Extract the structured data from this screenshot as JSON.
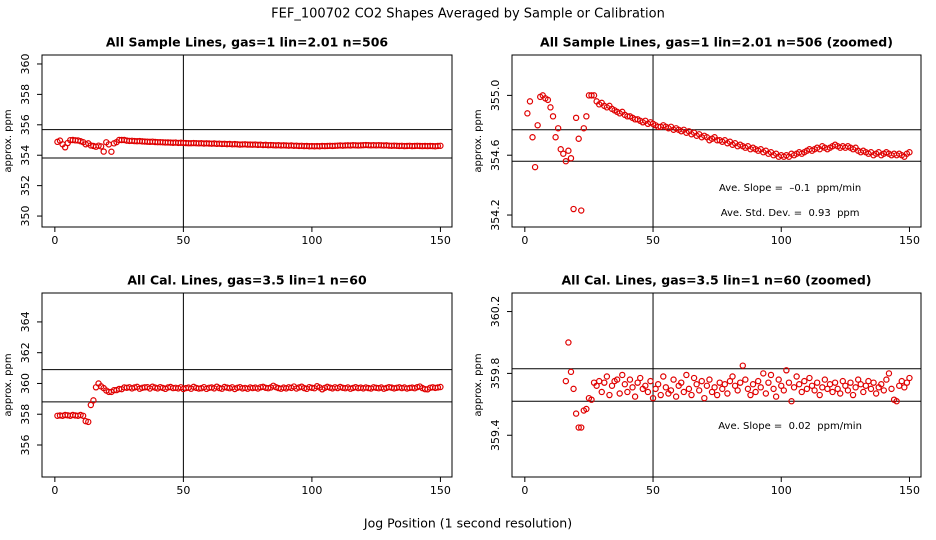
{
  "title": "FEF_100702  CO2 Shapes Averaged by Sample or Calibration",
  "x_label": "Jog Position (1 second resolution)",
  "chart_data": [
    {
      "type": "scatter",
      "title": "All Sample Lines, gas=1 lin=2.01 n=506",
      "y_label": "approx. ppm",
      "color": "#e00000",
      "xlim": [
        -5,
        154.5
      ],
      "xticks": [
        0,
        50,
        100,
        150
      ],
      "ylim": [
        349.28,
        360.59
      ],
      "yticks": [
        350,
        352,
        354,
        356,
        358,
        360
      ],
      "vline": 50,
      "hlines": [
        355.68,
        353.82
      ],
      "annotations": [],
      "x": [
        1,
        2,
        3,
        4,
        5,
        6,
        7,
        8,
        9,
        10,
        11,
        12,
        13,
        14,
        15,
        16,
        17,
        18,
        19,
        20,
        21,
        22,
        23,
        24,
        25,
        26,
        27,
        28,
        29,
        30,
        31,
        32,
        33,
        34,
        35,
        36,
        37,
        38,
        39,
        40,
        41,
        42,
        43,
        44,
        45,
        46,
        47,
        48,
        49,
        50,
        51,
        52,
        53,
        54,
        55,
        56,
        57,
        58,
        59,
        60,
        61,
        62,
        63,
        64,
        65,
        66,
        67,
        68,
        69,
        70,
        71,
        72,
        73,
        74,
        75,
        76,
        77,
        78,
        79,
        80,
        81,
        82,
        83,
        84,
        85,
        86,
        87,
        88,
        89,
        90,
        91,
        92,
        93,
        94,
        95,
        96,
        97,
        98,
        99,
        100,
        101,
        102,
        103,
        104,
        105,
        106,
        107,
        108,
        109,
        110,
        111,
        112,
        113,
        114,
        115,
        116,
        117,
        118,
        119,
        120,
        121,
        122,
        123,
        124,
        125,
        126,
        127,
        128,
        129,
        130,
        131,
        132,
        133,
        134,
        135,
        136,
        137,
        138,
        139,
        140,
        141,
        142,
        143,
        144,
        145,
        146,
        147,
        148,
        149,
        150
      ],
      "values": [
        354.88,
        354.96,
        354.72,
        354.52,
        354.8,
        354.99,
        355.0,
        354.98,
        354.97,
        354.92,
        354.86,
        354.72,
        354.78,
        354.64,
        354.61,
        354.56,
        354.63,
        354.58,
        354.24,
        354.85,
        354.71,
        354.23,
        354.78,
        354.86,
        355.0,
        355.0,
        355.0,
        354.96,
        354.94,
        354.95,
        354.93,
        354.92,
        354.93,
        354.91,
        354.9,
        354.89,
        354.88,
        354.89,
        354.87,
        354.86,
        354.86,
        354.85,
        354.84,
        354.84,
        354.83,
        354.82,
        354.83,
        354.81,
        354.82,
        354.81,
        354.8,
        354.79,
        354.79,
        354.8,
        354.79,
        354.78,
        354.79,
        354.77,
        354.78,
        354.77,
        354.76,
        354.77,
        354.75,
        354.76,
        354.74,
        354.75,
        354.73,
        354.74,
        354.72,
        354.73,
        354.72,
        354.7,
        354.71,
        354.72,
        354.7,
        354.7,
        354.69,
        354.7,
        354.68,
        354.69,
        354.67,
        354.68,
        354.66,
        354.67,
        354.66,
        354.65,
        354.66,
        354.64,
        354.65,
        354.64,
        354.63,
        354.64,
        354.62,
        354.63,
        354.61,
        354.62,
        354.6,
        354.61,
        354.59,
        354.6,
        354.59,
        354.6,
        354.59,
        354.61,
        354.6,
        354.61,
        354.62,
        354.61,
        354.62,
        354.63,
        354.64,
        354.63,
        354.64,
        354.65,
        354.64,
        354.66,
        354.65,
        354.64,
        354.65,
        354.66,
        354.67,
        354.66,
        354.65,
        354.66,
        354.65,
        354.66,
        354.65,
        354.64,
        354.65,
        354.63,
        354.62,
        354.63,
        354.62,
        354.61,
        354.62,
        354.6,
        354.61,
        354.62,
        354.6,
        354.61,
        354.62,
        354.61,
        354.6,
        354.61,
        354.6,
        354.61,
        354.6,
        354.59,
        354.61,
        354.62
      ]
    },
    {
      "type": "scatter",
      "title": "All Sample Lines, gas=1 lin=2.01 n=506 (zoomed)",
      "y_label": "approx. ppm",
      "color": "#e00000",
      "xlim": [
        -5,
        154.5
      ],
      "xticks": [
        0,
        50,
        100,
        150
      ],
      "ylim": [
        354.12,
        355.27
      ],
      "yticks": [
        354.2,
        354.6,
        {
          "value": 355,
          "label": "355.0"
        }
      ],
      "vline": 50,
      "hlines": [
        354.77,
        354.56
      ],
      "annotations": [
        "Ave. Slope =  –0.1  ppm/min",
        "Ave. Std. Dev. =  0.93  ppm"
      ],
      "x": [
        1,
        2,
        3,
        4,
        5,
        6,
        7,
        8,
        9,
        10,
        11,
        12,
        13,
        14,
        15,
        16,
        17,
        18,
        19,
        20,
        21,
        22,
        23,
        24,
        25,
        26,
        27,
        28,
        29,
        30,
        31,
        32,
        33,
        34,
        35,
        36,
        37,
        38,
        39,
        40,
        41,
        42,
        43,
        44,
        45,
        46,
        47,
        48,
        49,
        50,
        51,
        52,
        53,
        54,
        55,
        56,
        57,
        58,
        59,
        60,
        61,
        62,
        63,
        64,
        65,
        66,
        67,
        68,
        69,
        70,
        71,
        72,
        73,
        74,
        75,
        76,
        77,
        78,
        79,
        80,
        81,
        82,
        83,
        84,
        85,
        86,
        87,
        88,
        89,
        90,
        91,
        92,
        93,
        94,
        95,
        96,
        97,
        98,
        99,
        100,
        101,
        102,
        103,
        104,
        105,
        106,
        107,
        108,
        109,
        110,
        111,
        112,
        113,
        114,
        115,
        116,
        117,
        118,
        119,
        120,
        121,
        122,
        123,
        124,
        125,
        126,
        127,
        128,
        129,
        130,
        131,
        132,
        133,
        134,
        135,
        136,
        137,
        138,
        139,
        140,
        141,
        142,
        143,
        144,
        145,
        146,
        147,
        148,
        149,
        150
      ],
      "values": [
        354.88,
        354.96,
        354.72,
        354.52,
        354.8,
        354.99,
        355.0,
        354.98,
        354.97,
        354.92,
        354.86,
        354.72,
        354.78,
        354.64,
        354.61,
        354.56,
        354.63,
        354.58,
        354.24,
        354.85,
        354.71,
        354.23,
        354.78,
        354.86,
        355.0,
        355.0,
        355.0,
        354.96,
        354.94,
        354.95,
        354.93,
        354.92,
        354.93,
        354.91,
        354.9,
        354.89,
        354.88,
        354.89,
        354.87,
        354.86,
        354.86,
        354.85,
        354.84,
        354.84,
        354.83,
        354.82,
        354.83,
        354.81,
        354.82,
        354.81,
        354.8,
        354.79,
        354.79,
        354.8,
        354.79,
        354.78,
        354.79,
        354.77,
        354.78,
        354.77,
        354.76,
        354.77,
        354.75,
        354.76,
        354.74,
        354.75,
        354.73,
        354.74,
        354.72,
        354.73,
        354.72,
        354.7,
        354.71,
        354.72,
        354.7,
        354.7,
        354.69,
        354.7,
        354.68,
        354.69,
        354.67,
        354.68,
        354.66,
        354.67,
        354.66,
        354.65,
        354.66,
        354.64,
        354.65,
        354.64,
        354.63,
        354.64,
        354.62,
        354.63,
        354.61,
        354.62,
        354.6,
        354.61,
        354.59,
        354.6,
        354.59,
        354.6,
        354.59,
        354.61,
        354.6,
        354.61,
        354.62,
        354.61,
        354.62,
        354.63,
        354.64,
        354.63,
        354.64,
        354.65,
        354.64,
        354.66,
        354.65,
        354.64,
        354.65,
        354.66,
        354.67,
        354.66,
        354.65,
        354.66,
        354.65,
        354.66,
        354.65,
        354.64,
        354.65,
        354.63,
        354.62,
        354.63,
        354.62,
        354.61,
        354.62,
        354.6,
        354.61,
        354.62,
        354.6,
        354.61,
        354.62,
        354.61,
        354.6,
        354.61,
        354.6,
        354.61,
        354.6,
        354.59,
        354.61,
        354.62
      ]
    },
    {
      "type": "scatter",
      "title": "All Cal. Lines, gas=3.5 lin=1 n=60",
      "y_label": "approx. ppm",
      "color": "#e00000",
      "xlim": [
        -5,
        154.5
      ],
      "xticks": [
        0,
        50,
        100,
        150
      ],
      "ylim": [
        353.92,
        365.88
      ],
      "yticks": [
        356,
        358,
        360,
        362,
        364
      ],
      "vline": 50,
      "hlines": [
        360.9,
        358.8
      ],
      "annotations": [],
      "x": [
        1,
        2,
        3,
        4,
        5,
        6,
        7,
        8,
        9,
        10,
        11,
        12,
        13,
        14,
        15,
        16,
        17,
        18,
        19,
        20,
        21,
        22,
        23,
        24,
        25,
        26,
        27,
        28,
        29,
        30,
        31,
        32,
        33,
        34,
        35,
        36,
        37,
        38,
        39,
        40,
        41,
        42,
        43,
        44,
        45,
        46,
        47,
        48,
        49,
        50,
        51,
        52,
        53,
        54,
        55,
        56,
        57,
        58,
        59,
        60,
        61,
        62,
        63,
        64,
        65,
        66,
        67,
        68,
        69,
        70,
        71,
        72,
        73,
        74,
        75,
        76,
        77,
        78,
        79,
        80,
        81,
        82,
        83,
        84,
        85,
        86,
        87,
        88,
        89,
        90,
        91,
        92,
        93,
        94,
        95,
        96,
        97,
        98,
        99,
        100,
        101,
        102,
        103,
        104,
        105,
        106,
        107,
        108,
        109,
        110,
        111,
        112,
        113,
        114,
        115,
        116,
        117,
        118,
        119,
        120,
        121,
        122,
        123,
        124,
        125,
        126,
        127,
        128,
        129,
        130,
        131,
        132,
        133,
        134,
        135,
        136,
        137,
        138,
        139,
        140,
        141,
        142,
        143,
        144,
        145,
        146,
        147,
        148,
        149,
        150
      ],
      "values": [
        357.9,
        357.92,
        357.9,
        357.95,
        357.93,
        357.9,
        357.95,
        357.92,
        357.9,
        357.95,
        357.9,
        357.55,
        357.5,
        358.6,
        358.9,
        359.75,
        360.0,
        359.81,
        359.7,
        359.54,
        359.45,
        359.45,
        359.56,
        359.57,
        359.64,
        359.63,
        359.74,
        359.72,
        359.75,
        359.68,
        359.74,
        359.78,
        359.66,
        359.72,
        359.75,
        359.76,
        359.67,
        359.79,
        359.73,
        359.68,
        359.76,
        359.71,
        359.65,
        359.74,
        359.77,
        359.7,
        359.72,
        359.68,
        359.75,
        359.64,
        359.7,
        359.73,
        359.66,
        359.78,
        359.71,
        359.67,
        359.69,
        359.76,
        359.65,
        359.72,
        359.74,
        359.68,
        359.79,
        359.7,
        359.66,
        359.77,
        359.73,
        359.69,
        359.75,
        359.64,
        359.72,
        359.76,
        359.68,
        359.71,
        359.66,
        359.74,
        359.7,
        359.73,
        359.67,
        359.75,
        359.78,
        359.72,
        359.69,
        359.74,
        359.85,
        359.76,
        359.7,
        359.66,
        359.73,
        359.68,
        359.75,
        359.71,
        359.8,
        359.67,
        359.74,
        359.79,
        359.7,
        359.65,
        359.76,
        359.72,
        359.69,
        359.82,
        359.74,
        359.62,
        359.71,
        359.78,
        359.73,
        359.68,
        359.75,
        359.7,
        359.77,
        359.72,
        359.69,
        359.74,
        359.66,
        359.71,
        359.76,
        359.7,
        359.73,
        359.68,
        359.74,
        359.7,
        359.67,
        359.75,
        359.72,
        359.69,
        359.74,
        359.66,
        359.71,
        359.76,
        359.73,
        359.68,
        359.72,
        359.75,
        359.7,
        359.74,
        359.67,
        359.71,
        359.73,
        359.69,
        359.76,
        359.8,
        359.7,
        359.63,
        359.62,
        359.72,
        359.75,
        359.71,
        359.74,
        359.77
      ]
    },
    {
      "type": "scatter",
      "title": "All Cal. Lines, gas=3.5 lin=1 n=60 (zoomed)",
      "y_label": "approx. ppm",
      "color": "#e00000",
      "xlim": [
        -5,
        154.5
      ],
      "xticks": [
        0,
        50,
        100,
        150
      ],
      "ylim": [
        359.13,
        360.32
      ],
      "yticks": [
        359.4,
        359.8,
        360.2
      ],
      "vline": 50,
      "hlines": [
        359.83,
        359.62
      ],
      "annotations": [
        "Ave. Slope =  0.02  ppm/min"
      ],
      "x": [
        1,
        2,
        3,
        4,
        5,
        6,
        7,
        8,
        9,
        10,
        11,
        12,
        13,
        14,
        15,
        16,
        17,
        18,
        19,
        20,
        21,
        22,
        23,
        24,
        25,
        26,
        27,
        28,
        29,
        30,
        31,
        32,
        33,
        34,
        35,
        36,
        37,
        38,
        39,
        40,
        41,
        42,
        43,
        44,
        45,
        46,
        47,
        48,
        49,
        50,
        51,
        52,
        53,
        54,
        55,
        56,
        57,
        58,
        59,
        60,
        61,
        62,
        63,
        64,
        65,
        66,
        67,
        68,
        69,
        70,
        71,
        72,
        73,
        74,
        75,
        76,
        77,
        78,
        79,
        80,
        81,
        82,
        83,
        84,
        85,
        86,
        87,
        88,
        89,
        90,
        91,
        92,
        93,
        94,
        95,
        96,
        97,
        98,
        99,
        100,
        101,
        102,
        103,
        104,
        105,
        106,
        107,
        108,
        109,
        110,
        111,
        112,
        113,
        114,
        115,
        116,
        117,
        118,
        119,
        120,
        121,
        122,
        123,
        124,
        125,
        126,
        127,
        128,
        129,
        130,
        131,
        132,
        133,
        134,
        135,
        136,
        137,
        138,
        139,
        140,
        141,
        142,
        143,
        144,
        145,
        146,
        147,
        148,
        149,
        150
      ],
      "values": [
        null,
        null,
        null,
        null,
        null,
        null,
        null,
        null,
        null,
        null,
        null,
        null,
        null,
        null,
        null,
        359.75,
        360.0,
        359.81,
        359.7,
        359.54,
        359.45,
        359.45,
        359.56,
        359.57,
        359.64,
        359.63,
        359.74,
        359.72,
        359.75,
        359.68,
        359.74,
        359.78,
        359.66,
        359.72,
        359.75,
        359.76,
        359.67,
        359.79,
        359.73,
        359.68,
        359.76,
        359.71,
        359.65,
        359.74,
        359.77,
        359.7,
        359.72,
        359.68,
        359.75,
        359.64,
        359.7,
        359.73,
        359.66,
        359.78,
        359.71,
        359.67,
        359.69,
        359.76,
        359.65,
        359.72,
        359.74,
        359.68,
        359.79,
        359.7,
        359.66,
        359.77,
        359.73,
        359.69,
        359.75,
        359.64,
        359.72,
        359.76,
        359.68,
        359.71,
        359.66,
        359.74,
        359.7,
        359.73,
        359.67,
        359.75,
        359.78,
        359.72,
        359.69,
        359.74,
        359.85,
        359.76,
        359.7,
        359.66,
        359.73,
        359.68,
        359.75,
        359.71,
        359.8,
        359.67,
        359.74,
        359.79,
        359.7,
        359.65,
        359.76,
        359.72,
        359.69,
        359.82,
        359.74,
        359.62,
        359.71,
        359.78,
        359.73,
        359.68,
        359.75,
        359.7,
        359.77,
        359.72,
        359.69,
        359.74,
        359.66,
        359.71,
        359.76,
        359.7,
        359.73,
        359.68,
        359.74,
        359.7,
        359.67,
        359.75,
        359.72,
        359.69,
        359.74,
        359.66,
        359.71,
        359.76,
        359.73,
        359.68,
        359.72,
        359.75,
        359.7,
        359.74,
        359.67,
        359.71,
        359.73,
        359.69,
        359.76,
        359.8,
        359.7,
        359.63,
        359.62,
        359.72,
        359.75,
        359.71,
        359.74,
        359.77
      ]
    }
  ]
}
